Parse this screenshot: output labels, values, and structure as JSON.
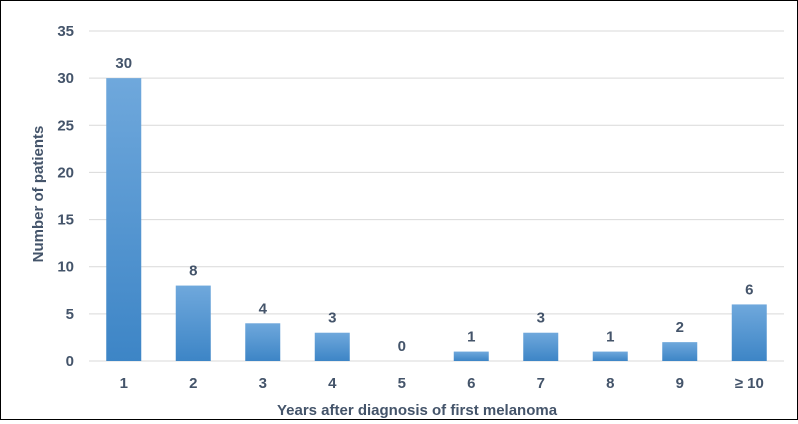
{
  "chart_data": {
    "type": "bar",
    "title": "",
    "xlabel": "Years after diagnosis of first melanoma",
    "ylabel": "Number of patients",
    "categories": [
      "1",
      "2",
      "3",
      "4",
      "5",
      "6",
      "7",
      "8",
      "9",
      "≥ 10"
    ],
    "values": [
      30,
      8,
      4,
      3,
      0,
      1,
      3,
      1,
      2,
      6
    ],
    "value_labels": [
      "30",
      "8",
      "4",
      "3",
      "0",
      "1",
      "3",
      "1",
      "2",
      "6"
    ],
    "ylim": [
      0,
      35
    ],
    "yticks": [
      "0",
      "5",
      "10",
      "15",
      "20",
      "25",
      "30",
      "35"
    ],
    "grid": true,
    "legend": "none",
    "colors": {
      "bar_top": "#6fa8dc",
      "bar_bottom": "#3d85c6",
      "grid": "#d9d9d9",
      "text": "#44546a"
    }
  }
}
